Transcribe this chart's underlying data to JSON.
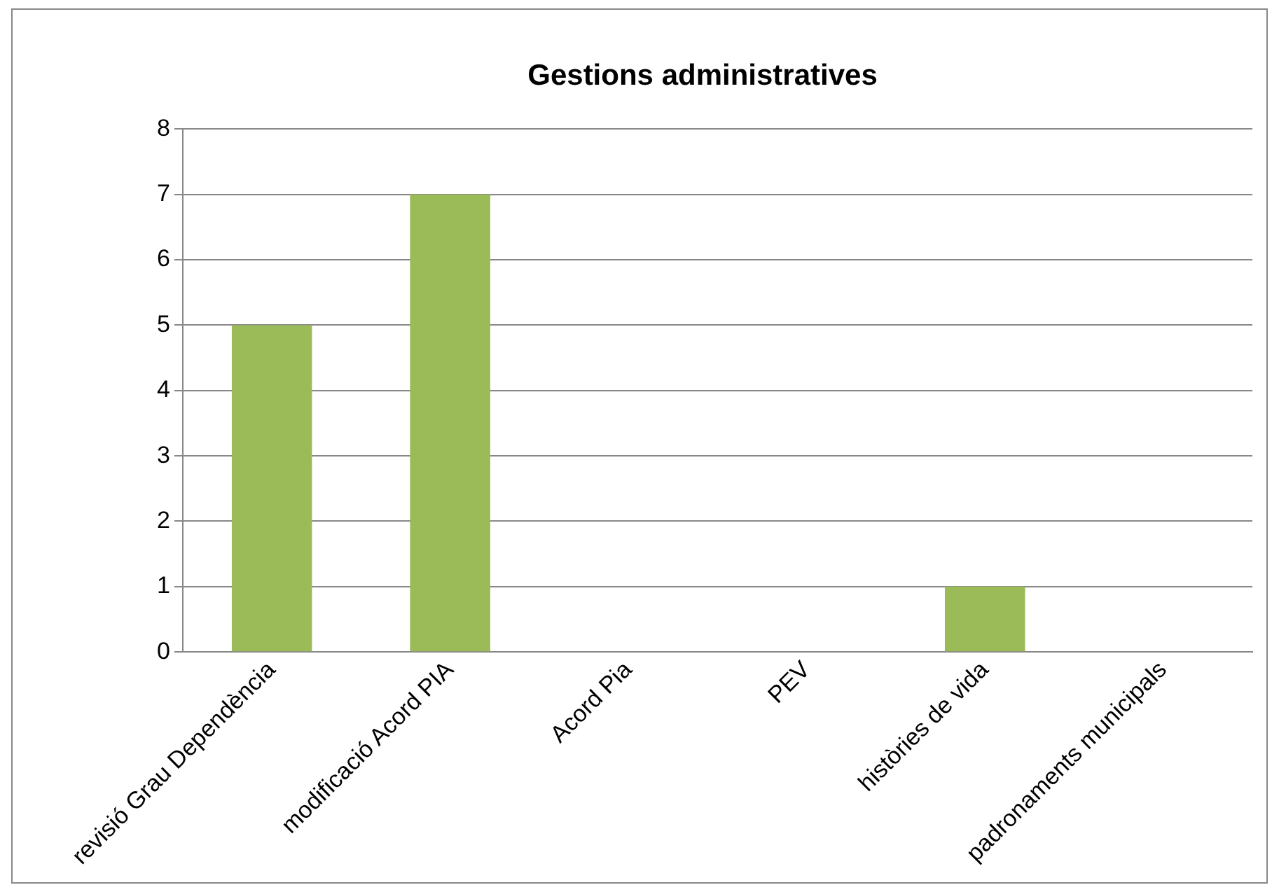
{
  "chart_data": {
    "type": "bar",
    "title": "Gestions administratives",
    "categories": [
      "revisió Grau Dependència",
      "modificació Acord PIA",
      "Acord Pia",
      "PEV",
      "històries de vida",
      "padronaments municipals"
    ],
    "values": [
      5,
      7,
      0,
      0,
      1,
      0
    ],
    "color": "#9bbb59",
    "ylim": [
      0,
      8
    ],
    "yticks": [
      0,
      1,
      2,
      3,
      4,
      5,
      6,
      7,
      8
    ],
    "grid": "y",
    "legend": false
  }
}
